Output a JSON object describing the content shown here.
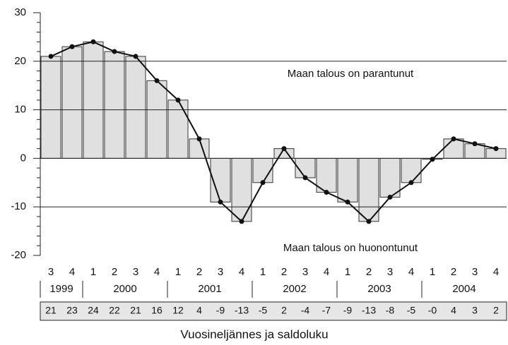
{
  "chart_data": {
    "type": "bar",
    "categories": [
      "3",
      "4",
      "1",
      "2",
      "3",
      "4",
      "1",
      "2",
      "3",
      "4",
      "1",
      "2",
      "3",
      "4",
      "1",
      "2",
      "3",
      "4",
      "1",
      "2",
      "3",
      "4"
    ],
    "years": [
      "1999",
      "2000",
      "2001",
      "2002",
      "2003",
      "2004"
    ],
    "values": [
      21,
      23,
      24,
      22,
      21,
      16,
      12,
      4,
      -9,
      -13,
      -5,
      2,
      -4,
      -7,
      -9,
      -13,
      -8,
      -5,
      -0.2,
      4,
      3,
      2
    ],
    "value_labels": [
      "21",
      "23",
      "24",
      "22",
      "21",
      "16",
      "12",
      "4",
      "-9",
      "-13",
      "-5",
      "2",
      "-4",
      "-7",
      "-9",
      "-13",
      "-8",
      "-5",
      "-0",
      "4",
      "3",
      "2"
    ],
    "color": "#e0e0e0",
    "line_color": "#111",
    "annotations": [
      "Maan talous on parantunut",
      "Maan talous on huonontunut"
    ],
    "x_label": "Vuosineljännes ja saldoluku",
    "ylim": [
      -20,
      30
    ],
    "yticks": [
      -20,
      -10,
      0,
      10,
      20,
      30
    ],
    "grid": true
  }
}
